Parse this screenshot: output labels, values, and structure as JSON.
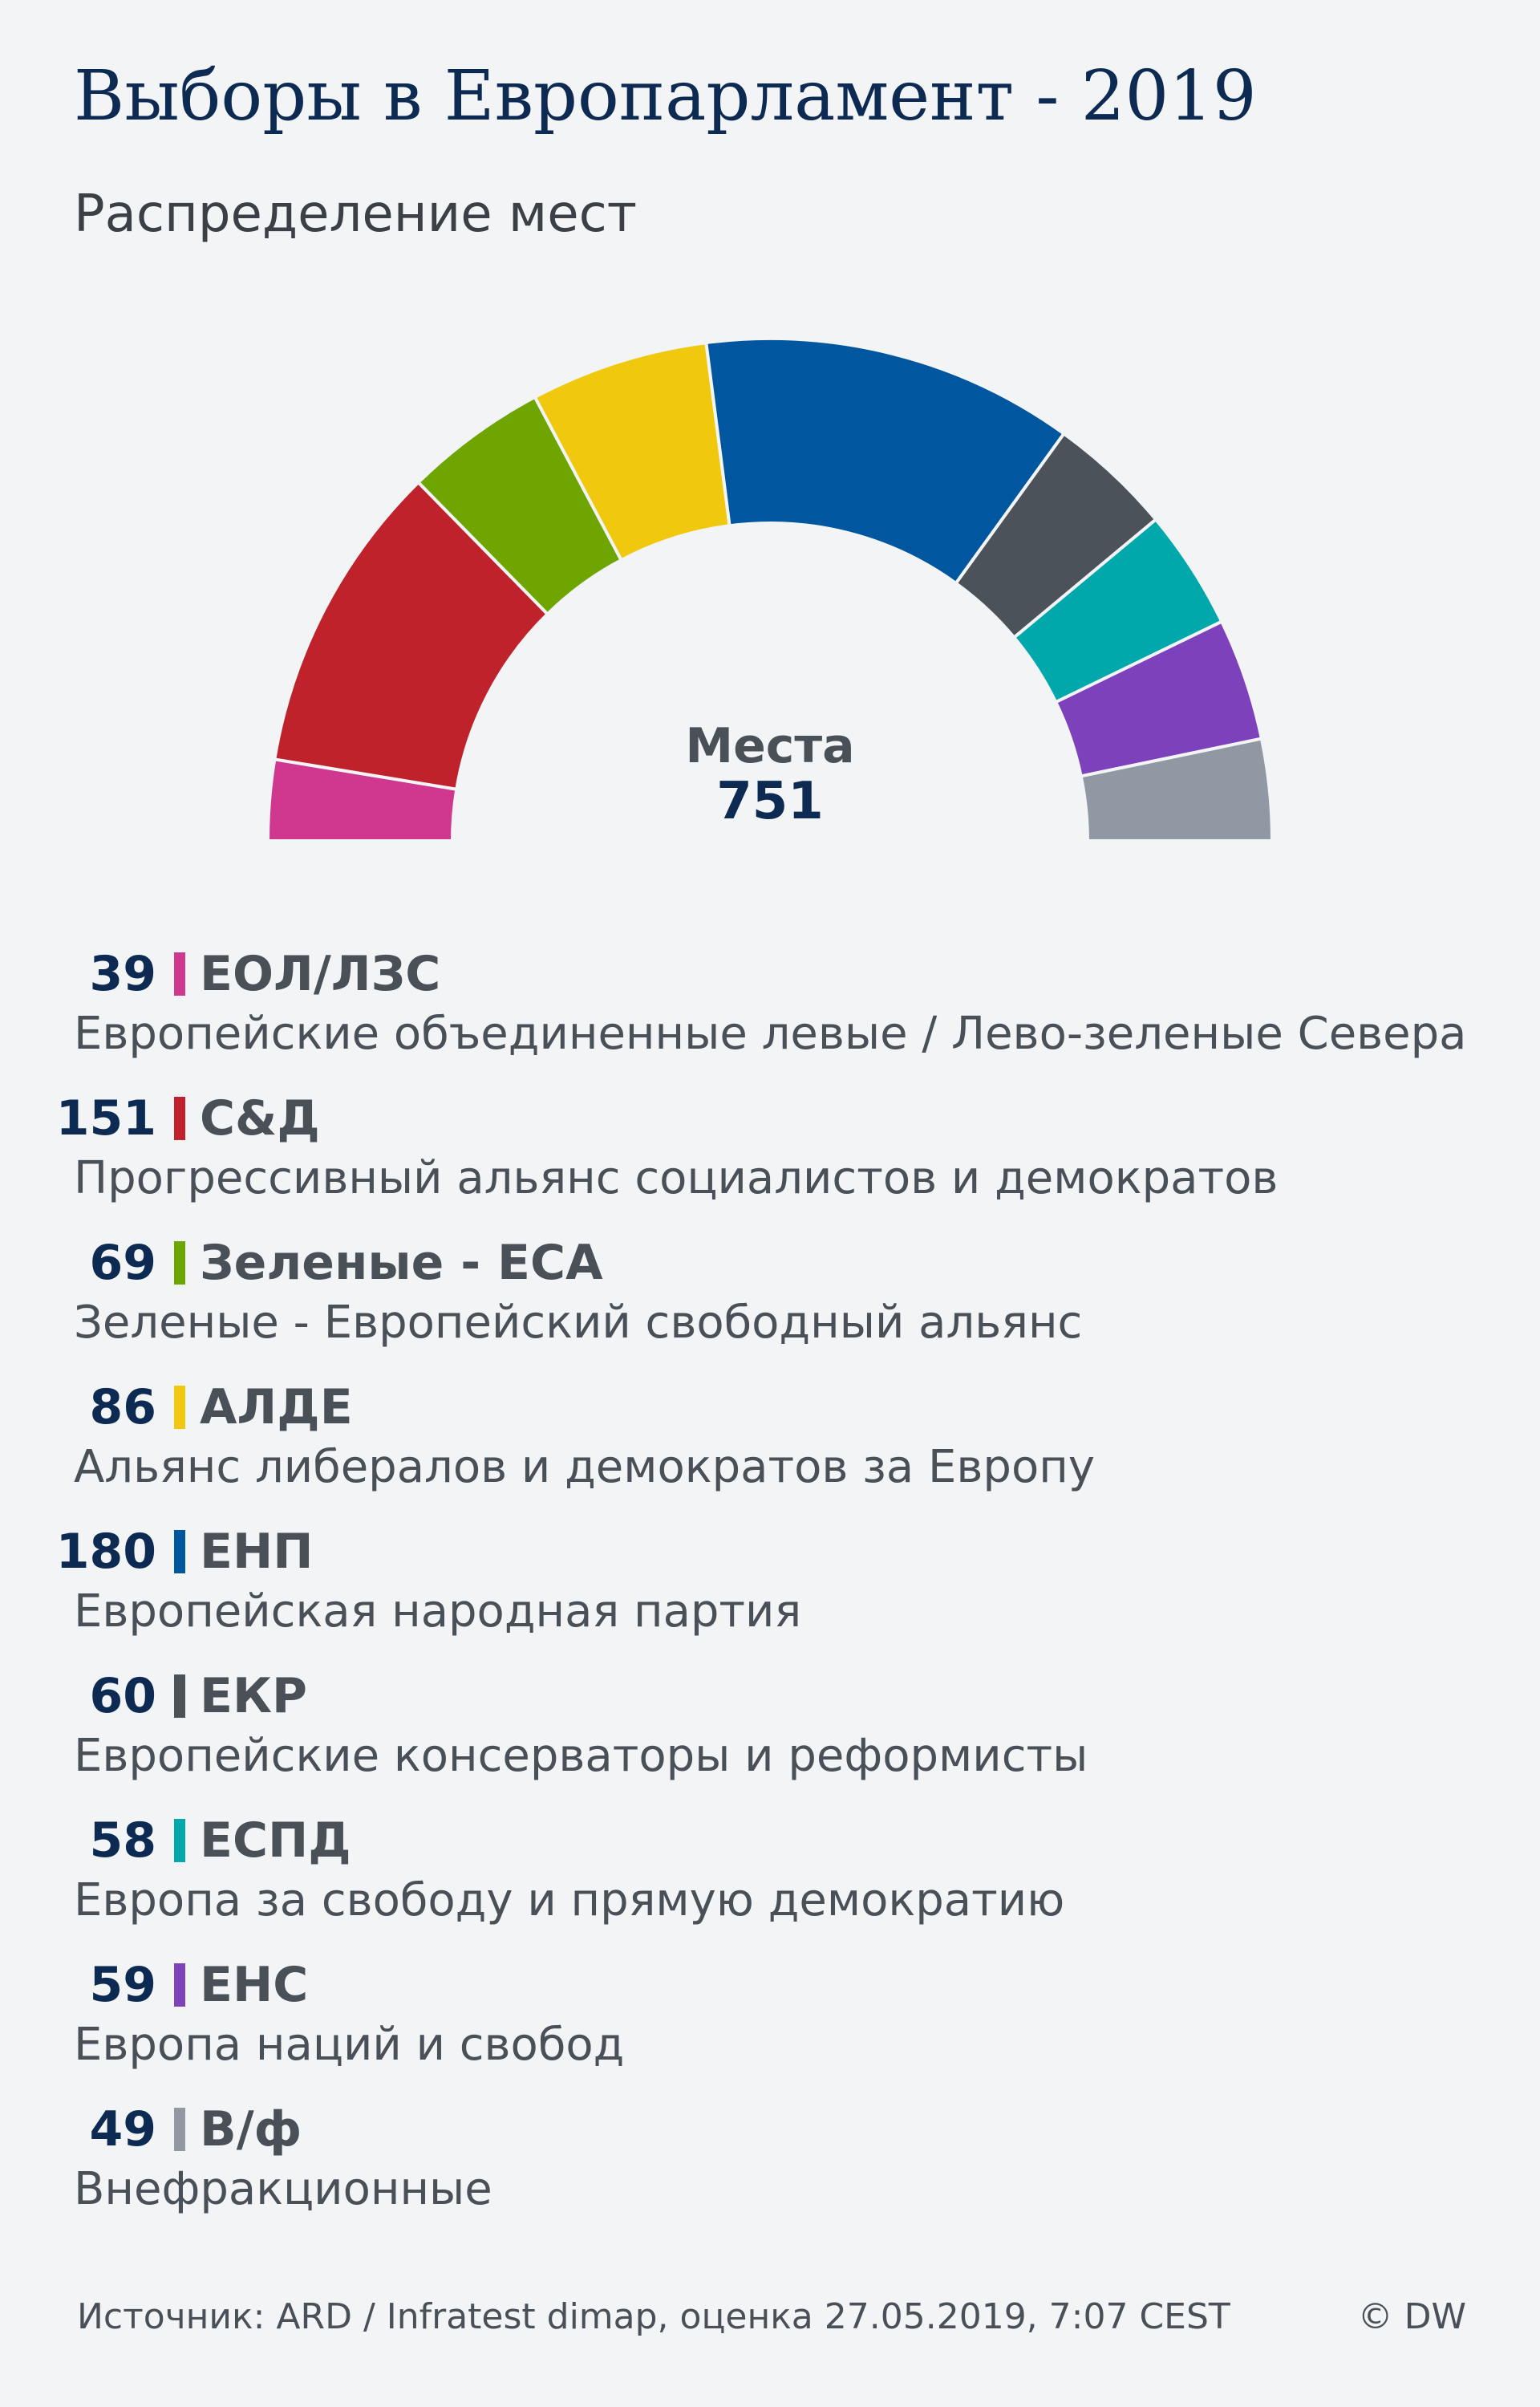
{
  "title": "Выборы в Европарламент - 2019",
  "subtitle": "Распределение мест",
  "center_label": "Места",
  "center_total": "751",
  "chart_data": {
    "type": "pie",
    "style": "hemicycle",
    "total": 751,
    "series": [
      {
        "abbr": "ЕОЛ/ЛЗС",
        "name": "Европейские объединенные левые / Лево-зеленые Севера",
        "value": 39,
        "color": "#cf388e"
      },
      {
        "abbr": "С&Д",
        "name": "Прогрессивный альянс социалистов и демократов",
        "value": 151,
        "color": "#bf222b"
      },
      {
        "abbr": "Зеленые - ЕСА",
        "name": "Зеленые - Европейский свободный альянс",
        "value": 69,
        "color": "#6ea500"
      },
      {
        "abbr": "АЛДЕ",
        "name": "Альянс либералов и демократов за Европу",
        "value": 86,
        "color": "#f0c90f"
      },
      {
        "abbr": "ЕНП",
        "name": "Европейская народная партия",
        "value": 180,
        "color": "#00579f"
      },
      {
        "abbr": "ЕКР",
        "name": "Европейские консерваторы и реформисты",
        "value": 60,
        "color": "#4b525a"
      },
      {
        "abbr": "ЕСПД",
        "name": "Европа за свободу и прямую демократию",
        "value": 58,
        "color": "#00a8ab"
      },
      {
        "abbr": "ЕНС",
        "name": "Европа наций и свобод",
        "value": 59,
        "color": "#7c41bb"
      },
      {
        "abbr": "В/ф",
        "name": "Внефракционные",
        "value": 49,
        "color": "#8f98a3"
      }
    ]
  },
  "footer": {
    "source": "Источник: ARD / Infratest dimap, оценка 27.05.2019, 7:07 CEST",
    "credit": "© DW"
  }
}
